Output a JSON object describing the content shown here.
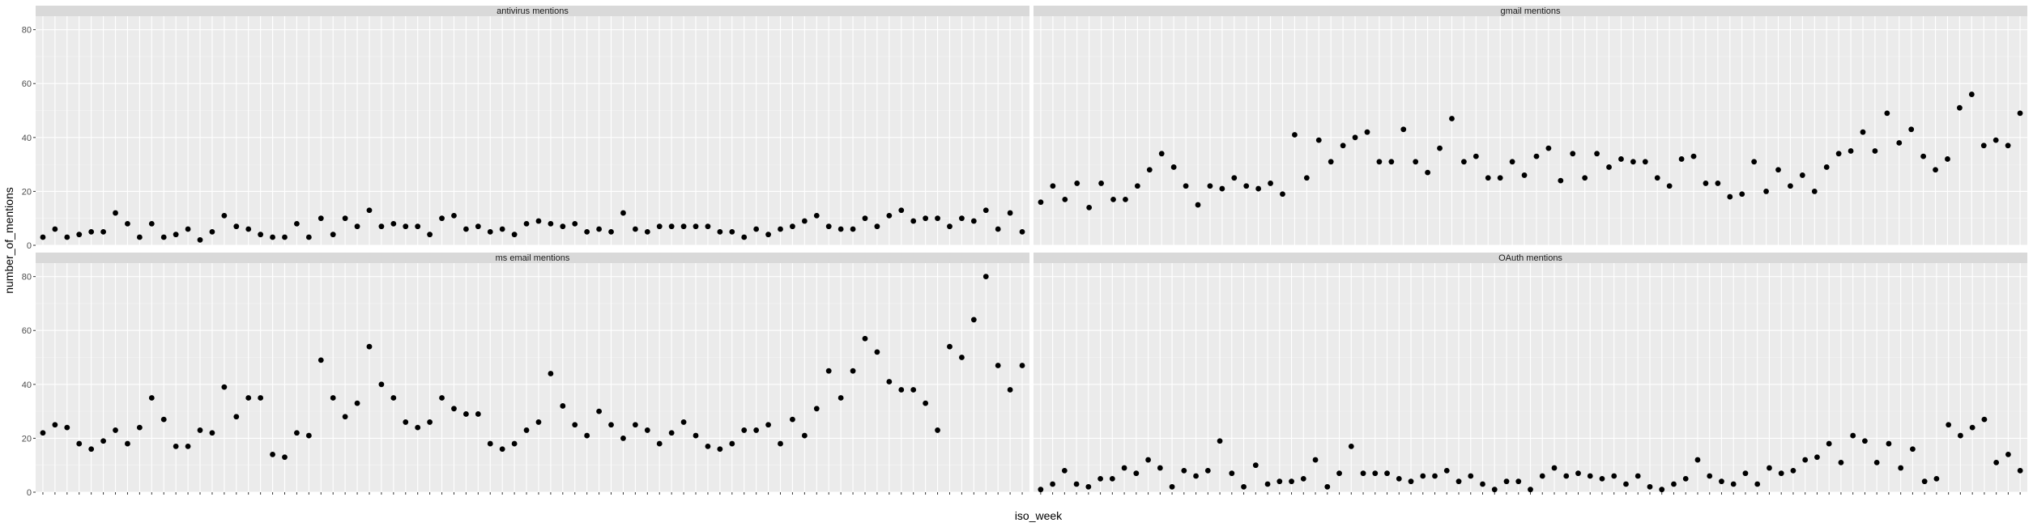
{
  "chart_data": {
    "type": "scatter",
    "xlabel": "iso_week",
    "ylabel": "number_of_mentions",
    "ylim": [
      0,
      85
    ],
    "y_ticks": [
      0,
      20,
      40,
      60,
      80
    ],
    "grid": true,
    "x_tick_note": "x tick labels are ISO-week strings that overlap illegibly in the source",
    "facets": [
      {
        "name": "antivirus mentions",
        "values": [
          3,
          6,
          3,
          4,
          5,
          5,
          12,
          8,
          3,
          8,
          3,
          4,
          6,
          2,
          5,
          11,
          7,
          6,
          4,
          3,
          3,
          8,
          3,
          10,
          4,
          10,
          7,
          13,
          7,
          8,
          7,
          7,
          4,
          10,
          11,
          6,
          7,
          5,
          6,
          4,
          8,
          9,
          8,
          7,
          8,
          5,
          6,
          5,
          12,
          6,
          5,
          7,
          7,
          7,
          7,
          7,
          5,
          5,
          3,
          6,
          4,
          6,
          7,
          9,
          11,
          7,
          6,
          6,
          10,
          7,
          11,
          13,
          9,
          10,
          10,
          7,
          10,
          9,
          13,
          6,
          12,
          5
        ]
      },
      {
        "name": "gmail mentions",
        "values": [
          16,
          22,
          17,
          23,
          14,
          23,
          17,
          17,
          22,
          28,
          34,
          29,
          22,
          15,
          22,
          21,
          25,
          22,
          21,
          23,
          19,
          41,
          25,
          39,
          31,
          37,
          40,
          42,
          31,
          31,
          43,
          31,
          27,
          36,
          47,
          31,
          33,
          25,
          25,
          31,
          26,
          33,
          36,
          24,
          34,
          25,
          34,
          29,
          32,
          31,
          31,
          25,
          22,
          32,
          33,
          23,
          23,
          18,
          19,
          31,
          20,
          28,
          22,
          26,
          20,
          29,
          34,
          35,
          42,
          35,
          49,
          38,
          43,
          33,
          28,
          32,
          51,
          56,
          37,
          39,
          37,
          49
        ]
      },
      {
        "name": "ms email mentions",
        "values": [
          22,
          25,
          24,
          18,
          16,
          19,
          23,
          18,
          24,
          35,
          27,
          17,
          17,
          23,
          22,
          39,
          28,
          35,
          35,
          14,
          13,
          22,
          21,
          49,
          35,
          28,
          33,
          54,
          40,
          35,
          26,
          24,
          26,
          35,
          31,
          29,
          29,
          18,
          16,
          18,
          23,
          26,
          44,
          32,
          25,
          21,
          30,
          25,
          20,
          25,
          23,
          18,
          22,
          26,
          21,
          17,
          16,
          18,
          23,
          23,
          25,
          18,
          27,
          21,
          31,
          45,
          35,
          45,
          57,
          52,
          41,
          38,
          38,
          33,
          23,
          54,
          50,
          64,
          80,
          47,
          38,
          47
        ]
      },
      {
        "name": "OAuth mentions",
        "values": [
          1,
          3,
          8,
          3,
          2,
          5,
          5,
          9,
          7,
          12,
          9,
          2,
          8,
          6,
          8,
          19,
          7,
          2,
          10,
          3,
          4,
          4,
          5,
          12,
          2,
          7,
          17,
          7,
          7,
          7,
          5,
          4,
          6,
          6,
          8,
          4,
          6,
          3,
          1,
          4,
          4,
          1,
          6,
          9,
          6,
          7,
          6,
          5,
          6,
          3,
          6,
          2,
          1,
          3,
          5,
          12,
          6,
          4,
          3,
          7,
          3,
          9,
          7,
          8,
          12,
          13,
          18,
          11,
          21,
          19,
          11,
          18,
          9,
          16,
          4,
          5,
          25,
          21,
          24,
          27,
          11,
          14,
          8
        ]
      }
    ]
  }
}
